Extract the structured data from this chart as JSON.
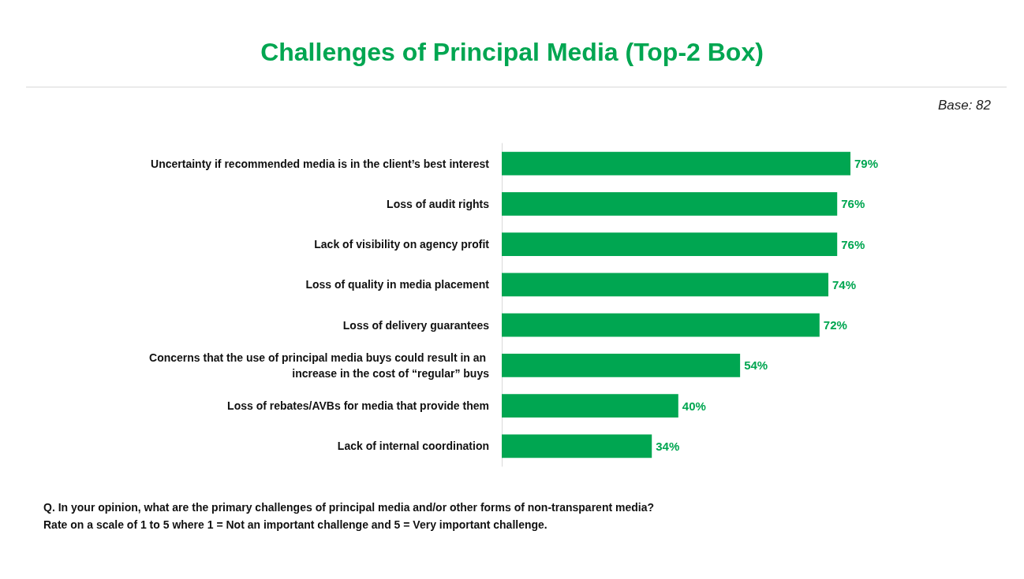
{
  "chart_data": {
    "type": "bar",
    "orientation": "horizontal",
    "title": "Challenges of Principal Media (Top-2 Box)",
    "categories": [
      "Uncertainty if recommended media is in the client’s best interest",
      "Loss of audit rights",
      "Lack of visibility on agency profit",
      "Loss of quality in media placement",
      "Loss of delivery guarantees",
      "Concerns that the use of principal media buys could result in an increase in the cost of “regular” buys",
      "Loss of rebates/AVBs for media that provide them",
      "Lack of internal coordination"
    ],
    "values": [
      79,
      76,
      76,
      74,
      72,
      54,
      40,
      34
    ],
    "value_labels": [
      "79%",
      "76%",
      "76%",
      "74%",
      "72%",
      "54%",
      "40%",
      "34%"
    ],
    "color": "#00a651",
    "annotations": [
      "Base: 82",
      "Q. In your opinion, what are the primary challenges of principal media and/or other forms of non-transparent media?",
      "Rate on a scale of 1 to 5 where 1 = Not an important challenge and 5 = Very important challenge."
    ]
  }
}
